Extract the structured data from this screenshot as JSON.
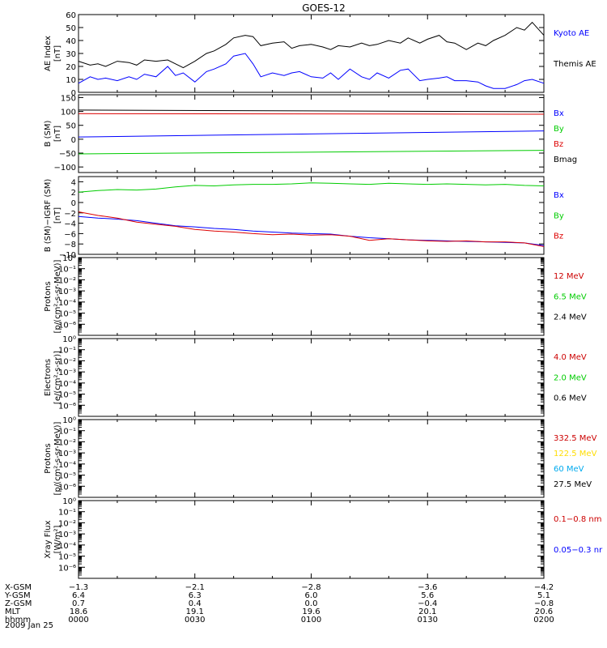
{
  "figure": {
    "title": "GOES-12",
    "date": "2009 Jan 25"
  },
  "colors": {
    "black": "#000000",
    "blue": "#0000ff",
    "green": "#00cc00",
    "red": "#dd0000",
    "darkred": "#cc0000",
    "gold": "#ffdd00",
    "cyan": "#00aaee"
  },
  "chart_data": [
    {
      "id": "ae",
      "type": "line",
      "ylabel": [
        "AE Index",
        "[nT]"
      ],
      "ylim": [
        0,
        60
      ],
      "yscale": "linear",
      "yticks": [
        0,
        10,
        20,
        30,
        40,
        50,
        60
      ],
      "ytick_labels": [
        "0",
        "10",
        "20",
        "30",
        "40",
        "50",
        "60"
      ],
      "series": [
        {
          "name": "Kyoto AE",
          "color": "#0000ff",
          "x": [
            0,
            3,
            5,
            7,
            10,
            13,
            15,
            17,
            20,
            23,
            25,
            27,
            30,
            33,
            35,
            38,
            40,
            43,
            45,
            47,
            50,
            53,
            55,
            57,
            60,
            63,
            65,
            67,
            70,
            73,
            75,
            77,
            80,
            83,
            85,
            88,
            90,
            93,
            95,
            97,
            100,
            103,
            105,
            107,
            110,
            113,
            115,
            117,
            120
          ],
          "y": [
            7,
            12,
            10,
            11,
            9,
            12,
            10,
            14,
            12,
            20,
            13,
            15,
            8,
            16,
            18,
            22,
            28,
            30,
            22,
            12,
            15,
            13,
            15,
            16,
            12,
            11,
            15,
            10,
            18,
            12,
            10,
            15,
            11,
            17,
            18,
            9,
            10,
            11,
            12,
            9,
            9,
            8,
            5,
            3,
            3,
            6,
            9,
            10,
            7
          ]
        },
        {
          "name": "Themis AE",
          "color": "#000000",
          "x": [
            0,
            3,
            5,
            7,
            10,
            13,
            15,
            17,
            20,
            23,
            25,
            27,
            30,
            33,
            35,
            38,
            40,
            43,
            45,
            47,
            50,
            53,
            55,
            57,
            60,
            63,
            65,
            67,
            70,
            73,
            75,
            77,
            80,
            83,
            85,
            88,
            90,
            93,
            95,
            97,
            100,
            103,
            105,
            107,
            110,
            113,
            115,
            117,
            120
          ],
          "y": [
            24,
            21,
            22,
            20,
            24,
            23,
            21,
            25,
            24,
            25,
            22,
            19,
            24,
            30,
            32,
            37,
            42,
            44,
            43,
            36,
            38,
            39,
            34,
            36,
            37,
            35,
            33,
            36,
            35,
            38,
            36,
            37,
            40,
            38,
            42,
            38,
            41,
            44,
            39,
            38,
            33,
            38,
            36,
            40,
            44,
            50,
            48,
            54,
            44
          ]
        }
      ]
    },
    {
      "id": "bsm",
      "type": "line",
      "ylabel": [
        "B (SM)",
        "[nT]"
      ],
      "ylim": [
        -120,
        160
      ],
      "yscale": "linear",
      "yticks": [
        -100,
        -50,
        0,
        50,
        100,
        150
      ],
      "ytick_labels": [
        "−100",
        "−50",
        "0",
        "50",
        "100",
        "150"
      ],
      "series": [
        {
          "name": "Bx",
          "color": "#0000ff",
          "x": [
            0,
            120
          ],
          "y": [
            8,
            30
          ]
        },
        {
          "name": "By",
          "color": "#00cc00",
          "x": [
            0,
            120
          ],
          "y": [
            -53,
            -40
          ]
        },
        {
          "name": "Bz",
          "color": "#dd0000",
          "x": [
            0,
            120
          ],
          "y": [
            92,
            90
          ]
        },
        {
          "name": "Bmag",
          "color": "#000000",
          "x": [
            0,
            120
          ],
          "y": [
            105,
            99
          ]
        }
      ]
    },
    {
      "id": "bdiff",
      "type": "line",
      "ylabel": [
        "B (SM)−IGRF (SM)",
        "[nT]"
      ],
      "ylim": [
        -10,
        5
      ],
      "yscale": "linear",
      "yticks": [
        -10,
        -8,
        -6,
        -4,
        -2,
        0,
        2,
        4
      ],
      "ytick_labels": [
        "−10",
        "−8",
        "−6",
        "−4",
        "−2",
        "0",
        "2",
        "4"
      ],
      "series": [
        {
          "name": "Bx",
          "color": "#0000ff",
          "x": [
            0,
            5,
            10,
            15,
            20,
            25,
            30,
            35,
            40,
            45,
            50,
            55,
            60,
            65,
            70,
            75,
            80,
            85,
            90,
            95,
            100,
            105,
            110,
            115,
            120
          ],
          "y": [
            -2.7,
            -3.0,
            -3.2,
            -3.5,
            -4.0,
            -4.5,
            -4.7,
            -5.0,
            -5.2,
            -5.5,
            -5.7,
            -5.9,
            -6.0,
            -6.1,
            -6.5,
            -6.8,
            -7.0,
            -7.2,
            -7.3,
            -7.4,
            -7.5,
            -7.6,
            -7.7,
            -7.8,
            -8.3
          ]
        },
        {
          "name": "By",
          "color": "#00cc00",
          "x": [
            0,
            5,
            10,
            15,
            20,
            25,
            30,
            35,
            40,
            45,
            50,
            55,
            60,
            65,
            70,
            75,
            80,
            85,
            90,
            95,
            100,
            105,
            110,
            115,
            120
          ],
          "y": [
            2.0,
            2.3,
            2.5,
            2.4,
            2.6,
            3.0,
            3.3,
            3.2,
            3.4,
            3.5,
            3.5,
            3.6,
            3.8,
            3.7,
            3.6,
            3.5,
            3.7,
            3.6,
            3.5,
            3.6,
            3.5,
            3.4,
            3.5,
            3.3,
            3.2
          ]
        },
        {
          "name": "Bz",
          "color": "#dd0000",
          "x": [
            0,
            5,
            10,
            15,
            20,
            25,
            30,
            35,
            40,
            45,
            50,
            55,
            60,
            65,
            70,
            75,
            80,
            85,
            90,
            95,
            100,
            105,
            110,
            115,
            120
          ],
          "y": [
            -1.8,
            -2.5,
            -3.0,
            -3.8,
            -4.2,
            -4.6,
            -5.2,
            -5.5,
            -5.7,
            -6.0,
            -6.2,
            -6.1,
            -6.3,
            -6.2,
            -6.5,
            -7.3,
            -7.0,
            -7.2,
            -7.4,
            -7.5,
            -7.4,
            -7.6,
            -7.6,
            -7.8,
            -8.5
          ]
        }
      ]
    },
    {
      "id": "protons1",
      "type": "line",
      "ylabel": [
        "Protons",
        "[p/(cm²-s-sr-MeV)]"
      ],
      "ylim_exp": [
        -7,
        0
      ],
      "yscale": "log",
      "ytick_labels": [
        "10⁰",
        "10⁻¹",
        "10⁻²",
        "10⁻³",
        "10⁻⁴",
        "10⁻⁵",
        "10⁻⁶"
      ],
      "series": [
        {
          "name": "12 MeV",
          "color": "#cc0000"
        },
        {
          "name": "6.5 MeV",
          "color": "#00cc00"
        },
        {
          "name": "2.4 MeV",
          "color": "#000000"
        }
      ]
    },
    {
      "id": "electrons",
      "type": "line",
      "ylabel": [
        "Electrons",
        "[e/(cm²-s-sr)]"
      ],
      "ylim_exp": [
        -7,
        0
      ],
      "yscale": "log",
      "ytick_labels": [
        "10⁰",
        "10⁻¹",
        "10⁻²",
        "10⁻³",
        "10⁻⁴",
        "10⁻⁵",
        "10⁻⁶"
      ],
      "series": [
        {
          "name": "4.0 MeV",
          "color": "#cc0000"
        },
        {
          "name": "2.0 MeV",
          "color": "#00cc00"
        },
        {
          "name": "0.6 MeV",
          "color": "#000000"
        }
      ]
    },
    {
      "id": "protons2",
      "type": "line",
      "ylabel": [
        "Protons",
        "[p/(cm²-s-sr-MeV)]"
      ],
      "ylim_exp": [
        -7,
        0
      ],
      "yscale": "log",
      "ytick_labels": [
        "10⁰",
        "10⁻¹",
        "10⁻²",
        "10⁻³",
        "10⁻⁴",
        "10⁻⁵",
        "10⁻⁶"
      ],
      "series": [
        {
          "name": "332.5 MeV",
          "color": "#cc0000"
        },
        {
          "name": "122.5 MeV",
          "color": "#ffdd00"
        },
        {
          "name": "60 MeV",
          "color": "#00aaee"
        },
        {
          "name": "27.5 MeV",
          "color": "#000000"
        }
      ]
    },
    {
      "id": "xray",
      "type": "line",
      "ylabel": [
        "Xray Flux",
        "[W/m²]"
      ],
      "ylim_exp": [
        -7,
        0
      ],
      "yscale": "log",
      "ytick_labels": [
        "10⁰",
        "10⁻¹",
        "10⁻²",
        "10⁻³",
        "10⁻⁴",
        "10⁻⁵",
        "10⁻⁶"
      ],
      "series": [
        {
          "name": "0.1−0.8 nm",
          "color": "#cc0000"
        },
        {
          "name": "0.05−0.3 nr",
          "color": "#0000ff"
        }
      ]
    }
  ],
  "x_axis": {
    "ticks_minutes": [
      0,
      30,
      60,
      90,
      120
    ],
    "rows": [
      {
        "label": "X-GSM",
        "values": [
          "−1.3",
          "−2.1",
          "−2.8",
          "−3.6",
          "−4.2"
        ]
      },
      {
        "label": "Y-GSM",
        "values": [
          "6.4",
          "6.3",
          "6.0",
          "5.6",
          "5.1"
        ]
      },
      {
        "label": "Z-GSM",
        "values": [
          "0.7",
          "0.4",
          "0.0",
          "−0.4",
          "−0.8"
        ]
      },
      {
        "label": "MLT",
        "values": [
          "18.6",
          "19.1",
          "19.6",
          "20.1",
          "20.6"
        ]
      },
      {
        "label": "hhmm",
        "values": [
          "0000",
          "0030",
          "0100",
          "0130",
          "0200"
        ]
      }
    ]
  }
}
